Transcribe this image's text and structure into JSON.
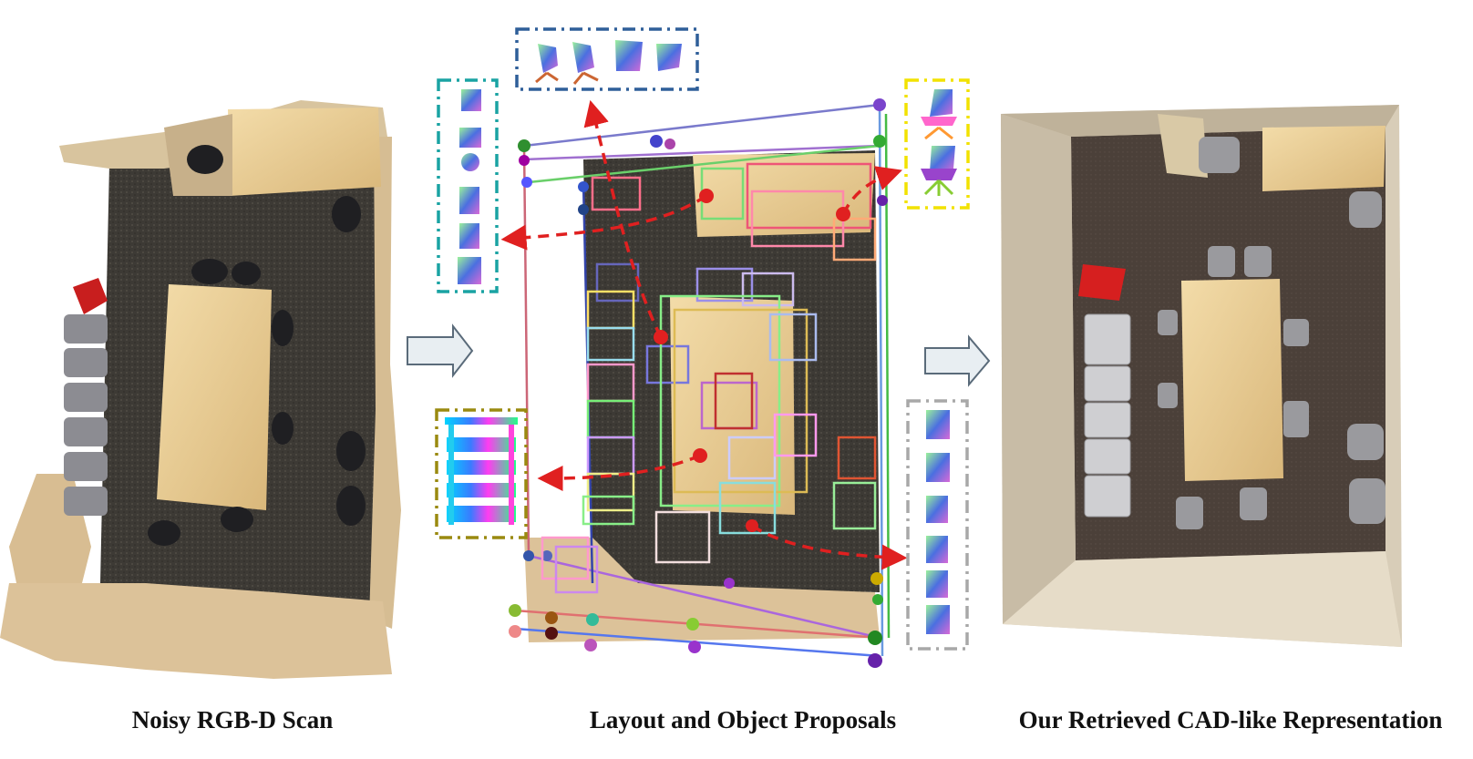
{
  "captions": {
    "scan": "Noisy RGB-D Scan",
    "proposals": "Layout and Object Proposals",
    "result": "Our Retrieved CAD-like Representation"
  },
  "colors": {
    "proposal_arrow": "#e02020",
    "flow_arrow_fill": "#e8eef2",
    "flow_arrow_stroke": "#5a6b7a",
    "inset_blue": "#2f5f99",
    "inset_teal": "#1aa3a3",
    "inset_yellow": "#f2e200",
    "inset_olive": "#9a8a10",
    "inset_gray": "#a8a8a8",
    "scan_floor": "#3e3a34",
    "cad_floor": "#4a403a",
    "cad_wall": "#d8cdb8",
    "table_wood": "#e9cf99",
    "chair_red": "#d61f1f"
  },
  "icons": [
    "flow-arrow-icon",
    "proposal-arrow-icon",
    "chair-thumbnail-icon",
    "shelf-thumbnail-icon"
  ]
}
